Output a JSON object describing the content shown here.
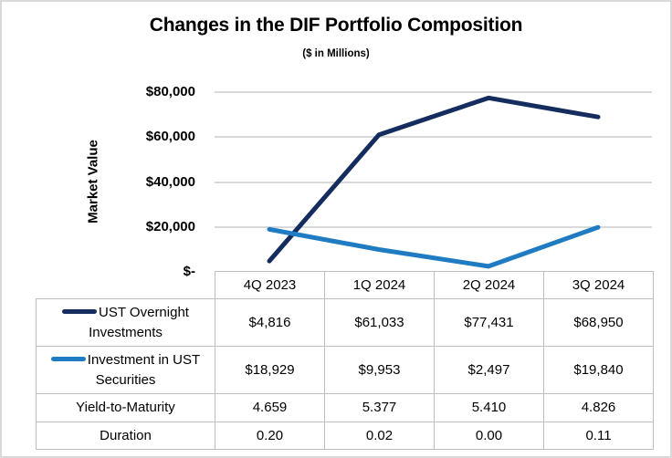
{
  "title": "Changes in the DIF Portfolio Composition",
  "subtitle": "($ in Millions)",
  "y_axis": {
    "label": "Market Value",
    "ticks": [
      "$80,000",
      "$60,000",
      "$40,000",
      "$20,000",
      "$-"
    ]
  },
  "colors": {
    "navy": "#152C5E",
    "blue": "#1F7CC2",
    "gridline": "#D9D9D9",
    "table_border": "#BFBFBF",
    "frame_border": "#D9D9D9"
  },
  "chart_data": {
    "type": "line",
    "title": "Changes in the DIF Portfolio Composition",
    "subtitle": "($ in Millions)",
    "categories": [
      "4Q 2023",
      "1Q 2024",
      "2Q 2024",
      "3Q 2024"
    ],
    "series": [
      {
        "name": "UST Overnight Investments",
        "values": [
          4816,
          61033,
          77431,
          68950
        ],
        "color_key": "navy"
      },
      {
        "name": "Investment in UST Securities",
        "values": [
          18929,
          9953,
          2497,
          19840
        ],
        "color_key": "blue"
      }
    ],
    "xlabel": "",
    "ylabel": "Market Value",
    "ylim": [
      0,
      80000
    ],
    "y_tick_step": 20000,
    "grid": true,
    "legend_position": "table-row-labels"
  },
  "table": {
    "columns": [
      "4Q 2023",
      "1Q 2024",
      "2Q 2024",
      "3Q 2024"
    ],
    "rows": [
      {
        "label": "UST Overnight Investments",
        "swatch": "navy",
        "values": [
          "$4,816",
          "$61,033",
          "$77,431",
          "$68,950"
        ]
      },
      {
        "label": "Investment in UST Securities",
        "swatch": "blue",
        "values": [
          "$18,929",
          "$9,953",
          "$2,497",
          "$19,840"
        ]
      },
      {
        "label": "Yield-to-Maturity",
        "swatch": null,
        "values": [
          "4.659",
          "5.377",
          "5.410",
          "4.826"
        ]
      },
      {
        "label": "Duration",
        "swatch": null,
        "values": [
          "0.20",
          "0.02",
          "0.00",
          "0.11"
        ]
      }
    ]
  }
}
